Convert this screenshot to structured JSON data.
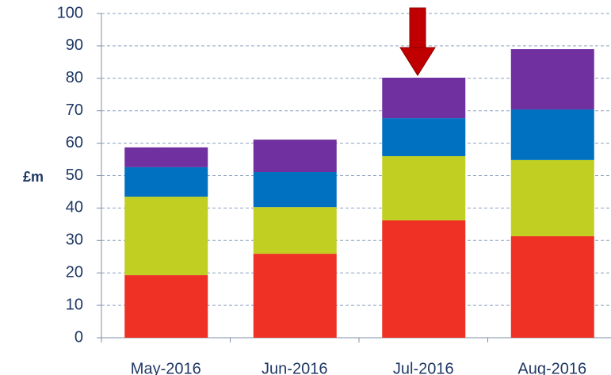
{
  "chart_data": {
    "type": "stacked_bar",
    "y_axis_label": "£m",
    "categories": [
      "May-2016",
      "Jun-2016",
      "Jul-2016",
      "Aug-2016"
    ],
    "series": [
      {
        "color": "#ee3124",
        "values": [
          19.3,
          25.9,
          36.2,
          31.3
        ]
      },
      {
        "color": "#c0cf22",
        "values": [
          24.2,
          14.4,
          19.8,
          23.5
        ]
      },
      {
        "color": "#0070c0",
        "values": [
          9.1,
          10.8,
          11.7,
          15.6
        ]
      },
      {
        "color": "#7030a0",
        "values": [
          6.1,
          10.0,
          12.5,
          18.6
        ]
      }
    ],
    "ylim": [
      0,
      100
    ],
    "yticks": [
      0,
      10,
      20,
      30,
      40,
      50,
      60,
      70,
      80,
      90,
      100
    ],
    "grid": true
  }
}
